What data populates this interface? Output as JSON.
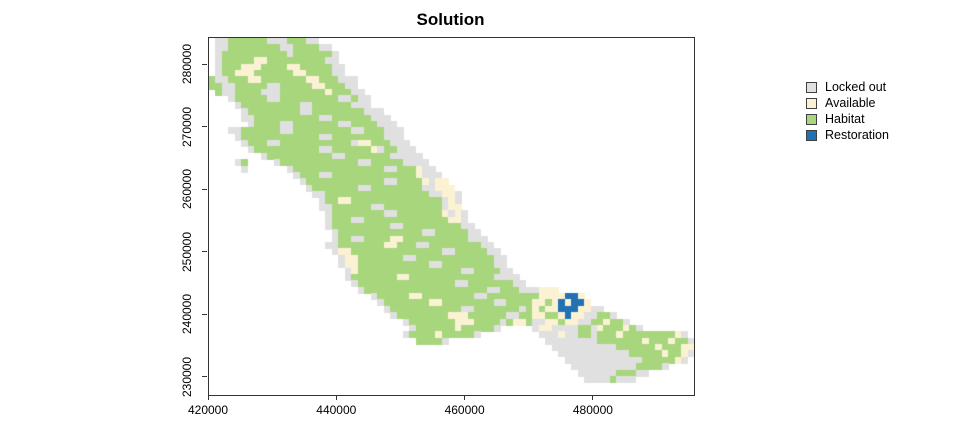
{
  "title": "Solution",
  "legend": {
    "items": [
      {
        "key": "L",
        "label": "Locked out",
        "color": "#e0e0e0"
      },
      {
        "key": "A",
        "label": "Available",
        "color": "#fbf2d3"
      },
      {
        "key": "H",
        "label": "Habitat",
        "color": "#a7d67d"
      },
      {
        "key": "R",
        "label": "Restoration",
        "color": "#2171b5"
      }
    ]
  },
  "axes": {
    "x": {
      "ticks": [
        420000,
        440000,
        460000,
        480000
      ]
    },
    "y": {
      "ticks": [
        230000,
        240000,
        250000,
        260000,
        270000,
        280000
      ]
    }
  },
  "chart_data": {
    "type": "heatmap",
    "title": "Solution",
    "xlabel": "",
    "ylabel": "",
    "xlim": [
      420000,
      495600
    ],
    "ylim": [
      227200,
      284320
    ],
    "x_tick_labels": [
      "420000",
      "440000",
      "460000",
      "480000"
    ],
    "y_tick_labels": [
      "230000",
      "240000",
      "250000",
      "260000",
      "270000",
      "280000"
    ],
    "legend_position": "top-right",
    "grid_on": false,
    "cell_size_units": 1000,
    "grid_cols": 75,
    "grid_rows": 56,
    "cell_categories": {
      "L": "Locked out",
      "A": "Available",
      "H": "Habitat",
      "R": "Restoration",
      ".": "empty"
    },
    "colors": {
      "L": "#e0e0e0",
      "A": "#fbf2d3",
      "H": "#a7d67d",
      "R": "#2171b5",
      "background": "#ffffff",
      "frame": "#333333"
    },
    "grid": [
      ".LLHHHHHHLLLHHHLL",
      ".LLHHHHHHHHLLHHHHLL",
      ".LHHHHHHHHHHLHHHHHHL",
      ".LHHHHHAAHHHHHHHHHLL",
      ".LHHHAAAHHHHAAHHHHHLL",
      ".LHHAAAHHHHHHAAHHHHLL",
      "HLLHHHAAHHHHHHHAAHHHLLL",
      "HHLLHHHHHLLHHHHHAAHHHLL",
      ".HLLHHHHLLLHHHHHHHAHHHLL",
      "...LHHHHHLLHHHHHHHHHLLHLL",
      "....LHHHHHHHHHLLHHHHHHLLL",
      ".....LHHHHHHHHLLHHHHHHHHLLL",
      ".....LLHHHHHHHHHHLLHHHHHHLLL",
      "......LHHHHLLHHHHHHHLLHHHHLLL",
      "...LLHHHHHHLLHHHHHHHHHLLHHHLLL",
      "....LHHHHHHHHHHHHLLHHHHHHHHLLL",
      ".....LHHHLLHHHHHHHHHHHLAAHHHLLL",
      "......LHHHHHHHHHHLLHHHHHHALHHLLL",
      "........LHHHHHHHHHHLLHHHHHHHLLLLL",
      "....LH....LHHHHHHHHHHHHLLHHHHHLLLL",
      ".....L......LHHHHHHHHHHHHHHLLHHHALL",
      ".............LHHHLLHHHHHHHHHHHHHALLL",
      "..............LHHHHHHHHHHHHLLHHHHALAA",
      "...............LHHHHHHHLLHHHHHHHHLLAAA",
      "................LLHHHHHHHHHHHHHHHHLLAAL",
      ".................LHHAAHHHHHHHHHHHHHHLAL",
      ".................LLHHHHHHLLHHHHHHHHHLAA",
      "..................LHHHHHHHHLLHHHHHHHALAL",
      "..................LHHHLLHHHHHHHHHHHHHAAL",
      "..................LHHHHHHHHHLLHHHHHHHHHLL",
      "...................LHHHHHHHHHHHHHLLHHHHHLL",
      "...................LHHLLHHHHAAHHHHHHHHHHLLL",
      "..................LLHHHHHHHAAHHHLLHHHHHHHHLL",
      "...................LAAHHHHHHHHHHHHHHLLHHHHHLL",
      "....................LAAHHHHHHHLLHHHHHHHHHHHHLL",
      "....................LAAHHHHHHHHHHHLLHHHHHHHHLL",
      ".....................LAHHHHHHHHHHHHHHHHLLHHHHLL",
      ".....................LHHHHHHHAAHHHHHHHHHHHHHLLLL",
      "......................LHHHHHHHHHHHHHHHLLHHHHHHHLL",
      ".......................LHHHHHHHHHHHHHHHHHHHLLHHHLLLAAA",
      ".........................LHHHHHAAHHHHHHHHLLHHHHHHHHAAAARRA",
      "..........................LHHHHHHHAAHHHHHHHHLLHHHHAAHARARRA",
      "...........................LHHHHHHHHHHHLLHHHHHHHLHAHAARRRAALL",
      "............................LHHHHHHHHAAAHHHHHHLLHHAAHHARAALLHHL",
      "..............................LHHHHHHHAAAHHHHLHAAHLLAAHAALLHHAHHL",
      "...............................LHHHHHHAHHHHHL.....LAALLLLHHLAHHHAHL",
      "..............................LHHHHAHHHHHL.........LLLALLHHLHHHAHHHHHHHHAL",
      "................................HHHHL...............LLLLLLLLHHHHHHHAHHHAHHL",
      ".....................................................LLLLLLLLLLHHHHHHAHHHAA",
      "......................................................LLLLLLLLLLLHHHHHAHHAL",
      ".......................................................LLLLLLLLLLLLHHHHHAL",
      "........................................................LLLLLLLLLLHHHHL",
      ".........................................................LLLLLLHHHLL",
      "..........................................................LLLLHLLL",
      "",
      ""
    ]
  },
  "plot_frame": {
    "border_color": "#333333",
    "background": "#ffffff"
  }
}
